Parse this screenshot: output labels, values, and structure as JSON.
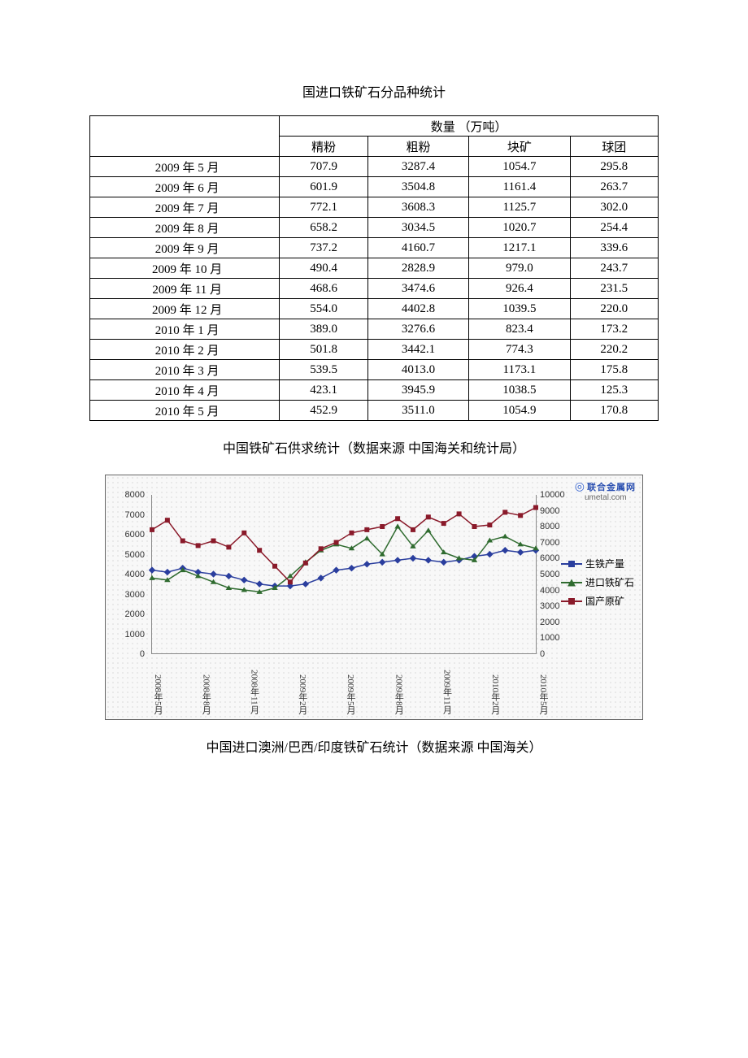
{
  "table1": {
    "title": "国进口铁矿石分品种统计",
    "super_header": "数量 （万吨）",
    "columns": [
      "精粉",
      "粗粉",
      "块矿",
      "球团"
    ],
    "rows": [
      {
        "label": "2009 年 5 月",
        "cells": [
          "707.9",
          "3287.4",
          "1054.7",
          "295.8"
        ]
      },
      {
        "label": "2009 年 6 月",
        "cells": [
          "601.9",
          "3504.8",
          "1161.4",
          "263.7"
        ]
      },
      {
        "label": "2009 年 7 月",
        "cells": [
          "772.1",
          "3608.3",
          "1125.7",
          "302.0"
        ]
      },
      {
        "label": "2009 年 8 月",
        "cells": [
          "658.2",
          "3034.5",
          "1020.7",
          "254.4"
        ]
      },
      {
        "label": "2009 年 9 月",
        "cells": [
          "737.2",
          "4160.7",
          "1217.1",
          "339.6"
        ]
      },
      {
        "label": "2009 年 10 月",
        "cells": [
          "490.4",
          "2828.9",
          "979.0",
          "243.7"
        ]
      },
      {
        "label": "2009 年 11 月",
        "cells": [
          "468.6",
          "3474.6",
          "926.4",
          "231.5"
        ]
      },
      {
        "label": "2009 年 12 月",
        "cells": [
          "554.0",
          "4402.8",
          "1039.5",
          "220.0"
        ]
      },
      {
        "label": "2010 年 1 月",
        "cells": [
          "389.0",
          "3276.6",
          "823.4",
          "173.2"
        ]
      },
      {
        "label": "2010 年 2 月",
        "cells": [
          "501.8",
          "3442.1",
          "774.3",
          "220.2"
        ]
      },
      {
        "label": "2010 年 3 月",
        "cells": [
          "539.5",
          "4013.0",
          "1173.1",
          "175.8"
        ]
      },
      {
        "label": "2010 年 4 月",
        "cells": [
          "423.1",
          "3945.9",
          "1038.5",
          "125.3"
        ]
      },
      {
        "label": "2010 年 5 月",
        "cells": [
          "452.9",
          "3511.0",
          "1054.9",
          "170.8"
        ]
      }
    ]
  },
  "caption1": "中国铁矿石供求统计（数据来源 中国海关和统计局）",
  "chart": {
    "watermark_cn": "联合金属网",
    "watermark_en": "umetal.com",
    "y_left": {
      "min": 0,
      "max": 8000,
      "step": 1000,
      "ticks": [
        "0",
        "1000",
        "2000",
        "3000",
        "4000",
        "5000",
        "6000",
        "7000",
        "8000"
      ]
    },
    "y_right": {
      "min": 0,
      "max": 10000,
      "step": 1000,
      "ticks": [
        "0",
        "1000",
        "2000",
        "3000",
        "4000",
        "5000",
        "6000",
        "7000",
        "8000",
        "9000",
        "10000"
      ]
    },
    "x_labels": [
      "2008年5月",
      "2008年8月",
      "2008年11月",
      "2009年2月",
      "2009年5月",
      "2009年8月",
      "2009年11月",
      "2010年2月",
      "2010年5月"
    ],
    "series": [
      {
        "name": "生铁产量",
        "axis": "left",
        "color": "#2a3e9e",
        "marker": "diamond",
        "values": [
          4200,
          4100,
          4300,
          4100,
          4000,
          3900,
          3700,
          3500,
          3400,
          3400,
          3500,
          3800,
          4200,
          4300,
          4500,
          4600,
          4700,
          4800,
          4700,
          4600,
          4700,
          4900,
          5000,
          5200,
          5100,
          5200
        ]
      },
      {
        "name": "进口铁矿石",
        "axis": "left",
        "color": "#2f6b2f",
        "marker": "triangle",
        "values": [
          3800,
          3700,
          4200,
          3900,
          3600,
          3300,
          3200,
          3100,
          3300,
          3900,
          4600,
          5200,
          5500,
          5300,
          5800,
          5000,
          6400,
          5400,
          6200,
          5100,
          4800,
          4700,
          5700,
          5900,
          5500,
          5300
        ]
      },
      {
        "name": "国产原矿",
        "axis": "right",
        "color": "#8a1a2a",
        "marker": "square",
        "values": [
          7800,
          8400,
          7100,
          6800,
          7100,
          6700,
          7600,
          6500,
          5500,
          4500,
          5700,
          6600,
          7000,
          7600,
          7800,
          8000,
          8500,
          7800,
          8600,
          8200,
          8800,
          8000,
          8100,
          8900,
          8700,
          9200
        ]
      }
    ],
    "n_points": 26,
    "line_width": 1.5,
    "marker_size": 6,
    "grid_color": "#888888",
    "background_color": "#f8f8f8"
  },
  "caption2": "中国进口澳洲/巴西/印度铁矿石统计（数据来源 中国海关）"
}
